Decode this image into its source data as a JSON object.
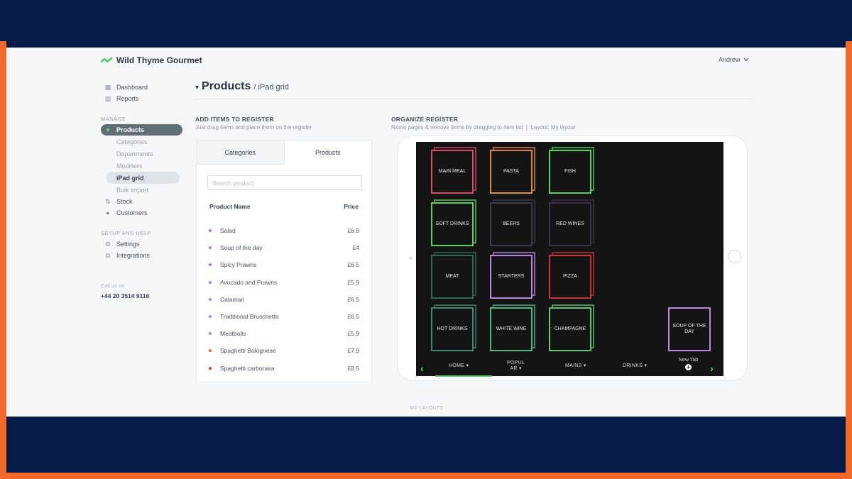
{
  "header": {
    "brand": "Wild Thyme Gourmet",
    "user": "Andrew"
  },
  "sidebar": {
    "top_items": [
      {
        "label": "Dashboard",
        "icon": "dashboard-icon"
      },
      {
        "label": "Reports",
        "icon": "reports-icon"
      }
    ],
    "manage_label": "MANAGE",
    "products_label": "Products",
    "sub_items": [
      "Categories",
      "Departments",
      "Modifiers",
      "iPad grid",
      "Bulk import"
    ],
    "stock_label": "Stock",
    "customers_label": "Customers",
    "setup_label": "SETUP AND HELP",
    "settings_label": "Settings",
    "integrations_label": "Integrations",
    "call_label": "Call us on",
    "call_number": "+44 20 3514 9116"
  },
  "page": {
    "title": "Products",
    "subtitle": "/ iPad grid"
  },
  "add_items": {
    "heading": "ADD ITEMS TO REGISTER",
    "description": "Just drag items and place them on the register",
    "tab_categories": "Categories",
    "tab_products": "Products",
    "search_placeholder": "Search product",
    "col_name": "Product Name",
    "col_price": "Price",
    "products": [
      {
        "name": "Salad",
        "price": "£6.9",
        "color": "#b07be0"
      },
      {
        "name": "Soup of the day",
        "price": "£4",
        "color": "#b07be0"
      },
      {
        "name": "Spicy Prawns",
        "price": "£6.5",
        "color": "#b07be0"
      },
      {
        "name": "Avocado and Prawns",
        "price": "£5.9",
        "color": "#b07be0"
      },
      {
        "name": "Calamari",
        "price": "£6.5",
        "color": "#b07be0"
      },
      {
        "name": "Traditional Bruschetta",
        "price": "£6.5",
        "color": "#b07be0"
      },
      {
        "name": "Meatballs",
        "price": "£5.9",
        "color": "#b07be0"
      },
      {
        "name": "Spaghetti Bolognese",
        "price": "£7.9",
        "color": "#e0693a"
      },
      {
        "name": "Spaghetti carbonara",
        "price": "£8.5",
        "color": "#d8493a"
      }
    ]
  },
  "organize": {
    "heading": "ORGANIZE REGISTER",
    "description": "Name pages & remove items by dragging to item list  |  Layout: My layout",
    "tiles": [
      {
        "label": "MAIN MEAL",
        "color": "#d94a6a"
      },
      {
        "label": "PASTA",
        "color": "#e08a4a"
      },
      {
        "label": "FISH",
        "color": "#55d45f"
      },
      {
        "label": "SOFT DRINKS",
        "color": "#55d45f"
      },
      {
        "label": "BEERS",
        "color": "#3a3a48"
      },
      {
        "label": "RED WINES",
        "color": "#3a3048"
      },
      {
        "label": "MEAT",
        "color": "#2f6a58"
      },
      {
        "label": "STARTERS",
        "color": "#b48ae0"
      },
      {
        "label": "PIZZA",
        "color": "#c8343a"
      },
      {
        "label": "HOT DRINKS",
        "color": "#3a8a78"
      },
      {
        "label": "WHITE WINE",
        "color": "#4ab88a"
      },
      {
        "label": "CHAMPAGNE",
        "color": "#5fc878"
      },
      {
        "label": "SOUP OF THE DAY",
        "color": "#b48ae0"
      }
    ],
    "nav": {
      "home": "HOME ▾",
      "popular": "POPUL\nAR ▾",
      "mains": "MAINS ▾",
      "drinks": "DRINKS ▾",
      "new_tab": "New Tab"
    },
    "accent": "#55d45f"
  },
  "footer": {
    "my_layouts": "MY LAYOUTS"
  }
}
